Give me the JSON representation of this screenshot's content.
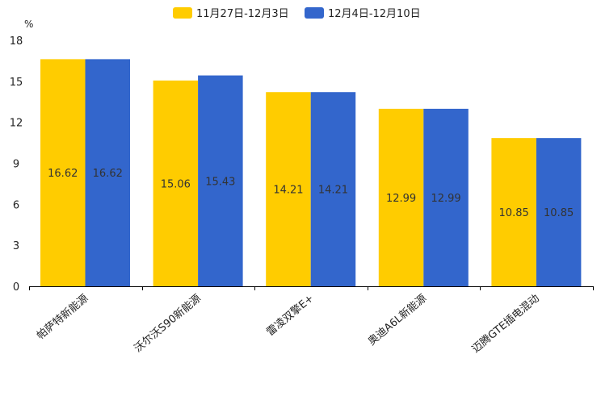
{
  "chart_data": {
    "type": "bar",
    "title": "",
    "unit_label": "%",
    "xlabel": "",
    "ylabel": "",
    "ylim": [
      0,
      18
    ],
    "yticks": [
      0,
      3,
      6,
      9,
      12,
      15,
      18
    ],
    "grid": false,
    "legend_position": "top-center",
    "categories": [
      "帕萨特新能源",
      "沃尔沃S90新能源",
      "雷凌双擎E+",
      "奥迪A6L新能源",
      "迈腾GTE插电混动"
    ],
    "series": [
      {
        "name": "11月27日-12月3日",
        "color": "#FFCC00",
        "values": [
          16.62,
          15.06,
          14.21,
          12.99,
          10.85
        ]
      },
      {
        "name": "12月4日-12月10日",
        "color": "#3366CC",
        "values": [
          16.62,
          15.43,
          14.21,
          12.99,
          10.85
        ]
      }
    ]
  }
}
